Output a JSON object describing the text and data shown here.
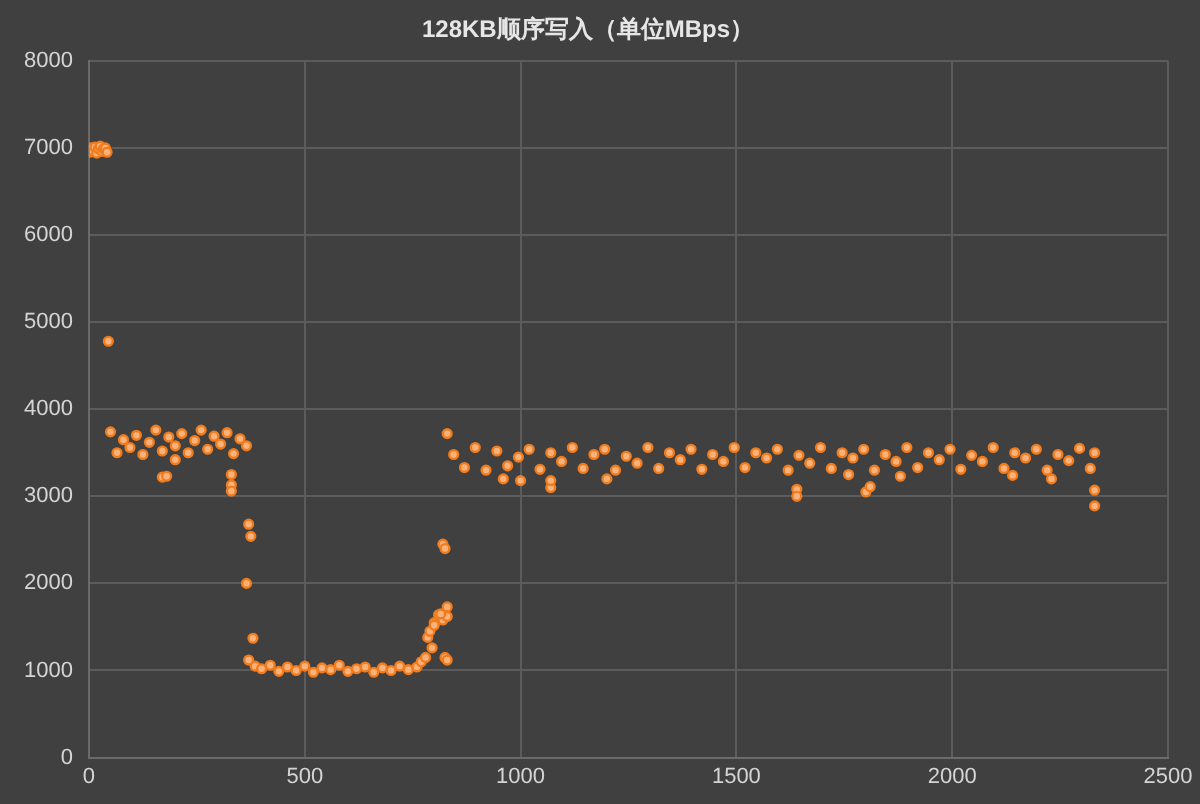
{
  "chart_data": {
    "type": "scatter",
    "title": "128KB顺序写入（单位MBps）",
    "marker": "circle",
    "grid": true,
    "xlim": [
      0,
      2500
    ],
    "xticks": [
      0,
      500,
      1000,
      1500,
      2000,
      2500
    ],
    "ylim": [
      0,
      8000
    ],
    "yticks": [
      0,
      1000,
      2000,
      3000,
      4000,
      5000,
      6000,
      7000,
      8000
    ],
    "series": [
      {
        "color": "#f07c1e",
        "x": [
          2,
          6,
          10,
          14,
          18,
          22,
          26,
          30,
          34,
          38,
          42,
          45,
          50,
          65,
          80,
          95,
          110,
          125,
          140,
          155,
          170,
          185,
          200,
          215,
          230,
          245,
          260,
          275,
          290,
          305,
          320,
          335,
          350,
          365,
          170,
          180,
          200,
          330,
          330,
          330,
          365,
          370,
          375,
          380,
          370,
          385,
          400,
          420,
          440,
          460,
          480,
          500,
          520,
          540,
          560,
          580,
          600,
          620,
          640,
          660,
          680,
          700,
          720,
          740,
          760,
          770,
          780,
          785,
          790,
          795,
          800,
          810,
          820,
          830,
          800,
          815,
          820,
          825,
          825,
          830,
          830,
          830,
          845,
          870,
          895,
          920,
          945,
          970,
          995,
          1020,
          1045,
          1070,
          1095,
          1120,
          1145,
          1170,
          1195,
          1220,
          1245,
          1270,
          1295,
          1320,
          1345,
          1370,
          1395,
          1420,
          1445,
          1470,
          1495,
          1520,
          1545,
          1570,
          1595,
          1620,
          1645,
          1670,
          1695,
          1720,
          1745,
          1770,
          1795,
          1820,
          1845,
          1870,
          1895,
          1920,
          1945,
          1970,
          1995,
          2020,
          2045,
          2070,
          2095,
          2120,
          2145,
          2170,
          2195,
          2220,
          2245,
          2270,
          2295,
          2320,
          2330,
          960,
          1000,
          1070,
          1070,
          1200,
          1640,
          1640,
          1760,
          1800,
          1810,
          1880,
          2140,
          2230,
          2330,
          2330
        ],
        "values": [
          6950,
          7000,
          6960,
          7010,
          6940,
          6990,
          7020,
          6960,
          6990,
          7000,
          6950,
          4780,
          3740,
          3500,
          3650,
          3560,
          3700,
          3480,
          3620,
          3760,
          3520,
          3680,
          3580,
          3720,
          3500,
          3640,
          3760,
          3540,
          3690,
          3600,
          3730,
          3490,
          3660,
          3580,
          3220,
          3230,
          3420,
          3250,
          3130,
          3060,
          2000,
          2680,
          2540,
          1370,
          1120,
          1050,
          1020,
          1060,
          990,
          1040,
          1000,
          1050,
          980,
          1030,
          1010,
          1060,
          990,
          1020,
          1040,
          980,
          1030,
          1000,
          1050,
          1010,
          1040,
          1100,
          1150,
          1380,
          1450,
          1260,
          1550,
          1640,
          1580,
          1620,
          1520,
          1650,
          2450,
          2400,
          1150,
          1120,
          3720,
          1730,
          3480,
          3330,
          3560,
          3300,
          3520,
          3350,
          3450,
          3540,
          3310,
          3500,
          3400,
          3560,
          3320,
          3480,
          3540,
          3300,
          3460,
          3380,
          3560,
          3320,
          3500,
          3420,
          3540,
          3310,
          3480,
          3400,
          3560,
          3330,
          3500,
          3440,
          3540,
          3300,
          3470,
          3380,
          3560,
          3320,
          3500,
          3440,
          3540,
          3300,
          3480,
          3400,
          3560,
          3330,
          3500,
          3420,
          3540,
          3310,
          3470,
          3400,
          3560,
          3320,
          3500,
          3440,
          3540,
          3300,
          3480,
          3410,
          3550,
          3320,
          3500,
          3200,
          3180,
          3100,
          3180,
          3200,
          3080,
          3000,
          3250,
          3050,
          3110,
          3230,
          3240,
          3200,
          3070,
          2890
        ]
      }
    ]
  }
}
